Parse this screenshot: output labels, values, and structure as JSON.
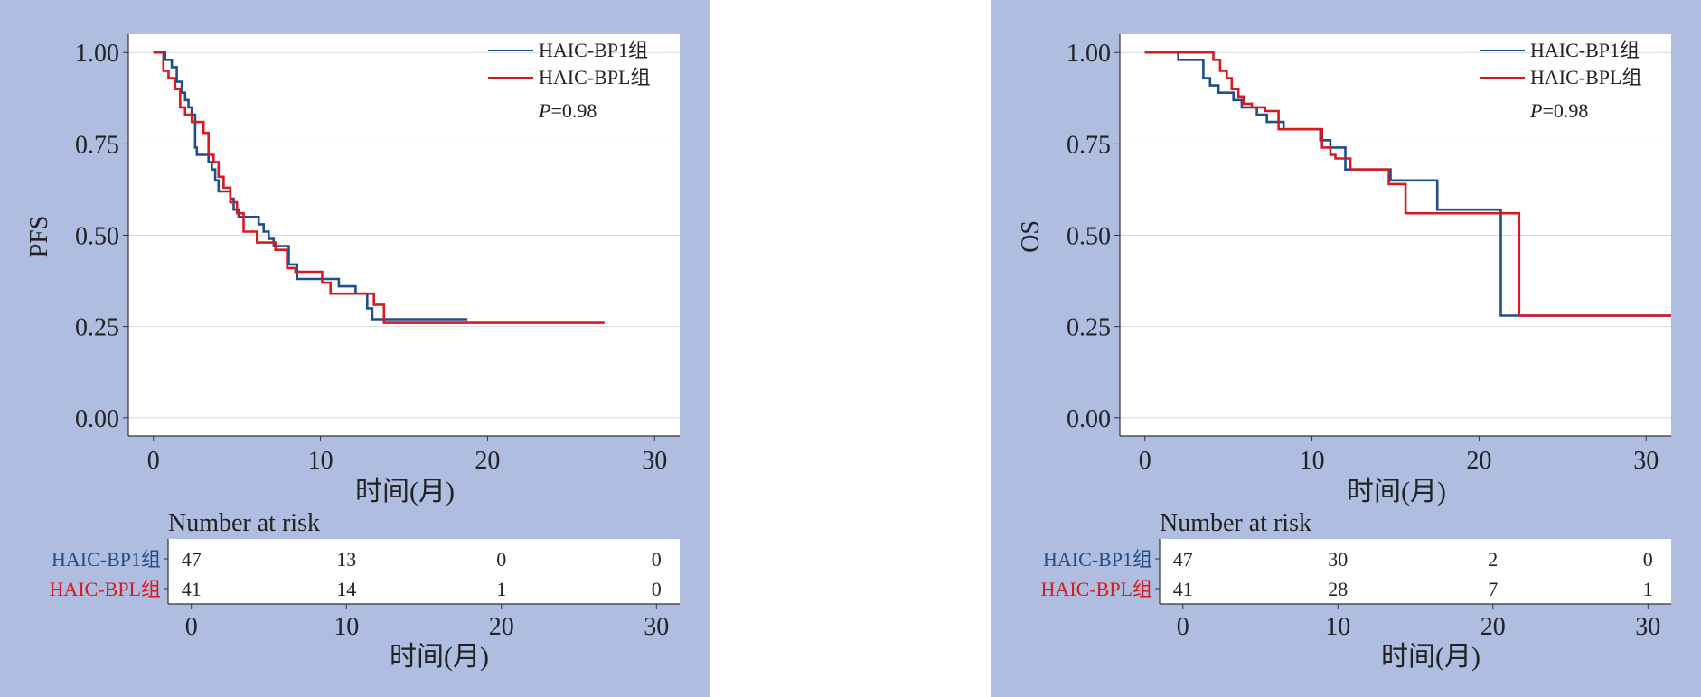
{
  "chart_data": [
    {
      "type": "line",
      "step": true,
      "ylabel": "PFS",
      "xlabel": "时间(月)",
      "xlim": [
        -1.5,
        31.5
      ],
      "ylim": [
        -0.05,
        1.05
      ],
      "xticks": [
        0,
        10,
        20,
        30
      ],
      "yticks": [
        "0.00",
        "0.25",
        "0.50",
        "0.75",
        "1.00"
      ],
      "ytick_values": [
        0,
        0.25,
        0.5,
        0.75,
        1.0
      ],
      "grid": true,
      "legend": {
        "position": "top-right",
        "pvalue_label": "P",
        "pvalue": "=0.98"
      },
      "series": [
        {
          "name": "HAIC-BP1组",
          "color": "#1f4e8c",
          "x": [
            0,
            0.7,
            1.1,
            1.4,
            1.7,
            1.9,
            2.1,
            2.3,
            2.5,
            2.6,
            3.3,
            3.5,
            3.7,
            3.9,
            4.6,
            4.8,
            5.1,
            6.3,
            6.6,
            6.9,
            7.2,
            8.1,
            8.6,
            11.1,
            12.1,
            12.8,
            13.1,
            14.0,
            18.8
          ],
          "y": [
            1.0,
            0.98,
            0.96,
            0.92,
            0.89,
            0.87,
            0.85,
            0.83,
            0.74,
            0.72,
            0.7,
            0.68,
            0.65,
            0.62,
            0.6,
            0.57,
            0.55,
            0.53,
            0.51,
            0.49,
            0.47,
            0.42,
            0.38,
            0.36,
            0.34,
            0.3,
            0.27,
            0.27,
            0.27
          ]
        },
        {
          "name": "HAIC-BPL组",
          "color": "#d71920",
          "x": [
            0,
            0.6,
            0.9,
            1.3,
            1.6,
            1.9,
            2.1,
            2.3,
            3.0,
            3.3,
            3.6,
            3.9,
            4.2,
            4.6,
            5.0,
            5.4,
            6.2,
            7.3,
            8.0,
            8.5,
            10.1,
            10.6,
            12.1,
            13.2,
            13.8,
            14.0,
            27.0
          ],
          "y": [
            1.0,
            0.95,
            0.93,
            0.9,
            0.85,
            0.83,
            0.83,
            0.81,
            0.78,
            0.72,
            0.7,
            0.66,
            0.63,
            0.59,
            0.56,
            0.51,
            0.48,
            0.46,
            0.41,
            0.4,
            0.37,
            0.34,
            0.34,
            0.31,
            0.26,
            0.26,
            0.26
          ]
        }
      ],
      "risk_table": {
        "title": "Number at risk",
        "xlabel": "时间(月)",
        "times": [
          0,
          10,
          20,
          30
        ],
        "rows": [
          {
            "label": "HAIC-BP1组",
            "color": "#1f4e8c",
            "counts": [
              47,
              13,
              0,
              0
            ]
          },
          {
            "label": "HAIC-BPL组",
            "color": "#d71920",
            "counts": [
              41,
              14,
              1,
              0
            ]
          }
        ]
      }
    },
    {
      "type": "line",
      "step": true,
      "ylabel": "OS",
      "xlabel": "时间(月)",
      "xlim": [
        -1.5,
        31.5
      ],
      "ylim": [
        -0.05,
        1.05
      ],
      "xticks": [
        0,
        10,
        20,
        30
      ],
      "yticks": [
        "0.00",
        "0.25",
        "0.50",
        "0.75",
        "1.00"
      ],
      "ytick_values": [
        0,
        0.25,
        0.5,
        0.75,
        1.0
      ],
      "grid": true,
      "legend": {
        "position": "top-right",
        "pvalue_label": "P",
        "pvalue": "=0.98"
      },
      "series": [
        {
          "name": "HAIC-BP1组",
          "color": "#1f4e8c",
          "x": [
            0,
            2.0,
            3.5,
            3.9,
            4.4,
            5.3,
            5.8,
            6.7,
            7.3,
            8.3,
            10.5,
            11.1,
            12.0,
            14.7,
            17.5,
            21.3,
            22.3,
            31.5
          ],
          "y": [
            1.0,
            0.98,
            0.93,
            0.91,
            0.89,
            0.87,
            0.85,
            0.83,
            0.81,
            0.79,
            0.76,
            0.74,
            0.68,
            0.65,
            0.57,
            0.28,
            0.28,
            0.28
          ]
        },
        {
          "name": "HAIC-BPL组",
          "color": "#d71920",
          "x": [
            0,
            4.1,
            4.5,
            4.9,
            5.2,
            5.6,
            5.9,
            6.4,
            7.2,
            8.0,
            10.6,
            11.1,
            11.4,
            12.3,
            14.6,
            15.6,
            22.4,
            31.5
          ],
          "y": [
            1.0,
            0.98,
            0.95,
            0.93,
            0.9,
            0.88,
            0.86,
            0.85,
            0.84,
            0.79,
            0.74,
            0.72,
            0.71,
            0.68,
            0.64,
            0.56,
            0.28,
            0.28
          ]
        }
      ],
      "risk_table": {
        "title": "Number at risk",
        "xlabel": "时间(月)",
        "times": [
          0,
          10,
          20,
          30
        ],
        "rows": [
          {
            "label": "HAIC-BP1组",
            "color": "#1f4e8c",
            "counts": [
              47,
              30,
              2,
              0
            ]
          },
          {
            "label": "HAIC-BPL组",
            "color": "#d71920",
            "counts": [
              41,
              28,
              7,
              1
            ]
          }
        ]
      }
    }
  ]
}
